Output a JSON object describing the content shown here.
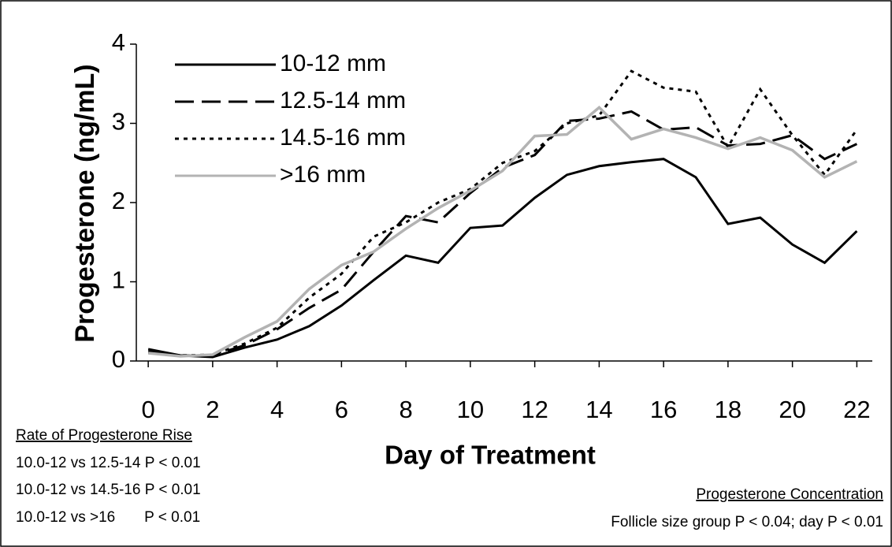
{
  "chart_data": {
    "type": "line",
    "x": [
      0,
      1,
      2,
      3,
      4,
      5,
      6,
      7,
      8,
      9,
      10,
      11,
      12,
      13,
      14,
      15,
      16,
      17,
      18,
      19,
      20,
      21,
      22
    ],
    "xlim": [
      -0.37,
      22.48
    ],
    "xticks": [
      0,
      2,
      4,
      6,
      8,
      10,
      12,
      14,
      16,
      18,
      20,
      22
    ],
    "ylim": [
      0,
      4
    ],
    "yticks": [
      0,
      1,
      2,
      3,
      4
    ],
    "x_label": "Day of Treatment",
    "y_label": "Progesterone (ng/mL)",
    "legend": "upper left",
    "series": [
      {
        "name": "10-12 mm",
        "color": "#000000",
        "dash": "solid",
        "values": [
          0.15,
          0.07,
          0.05,
          0.17,
          0.27,
          0.44,
          0.7,
          1.02,
          1.33,
          1.24,
          1.68,
          1.71,
          2.06,
          2.35,
          2.46,
          2.51,
          2.55,
          2.32,
          1.73,
          1.81,
          1.47,
          1.24,
          1.64
        ]
      },
      {
        "name": "12.5-14 mm",
        "color": "#000000",
        "dash": "dashed",
        "values": [
          0.12,
          0.07,
          0.07,
          0.2,
          0.4,
          0.67,
          0.9,
          1.38,
          1.83,
          1.75,
          2.12,
          2.44,
          2.6,
          3.03,
          3.06,
          3.15,
          2.92,
          2.95,
          2.72,
          2.74,
          2.85,
          2.55,
          2.74
        ]
      },
      {
        "name": "14.5-16 mm",
        "color": "#000000",
        "dash": "dotted",
        "values": [
          0.1,
          0.07,
          0.08,
          0.22,
          0.42,
          0.8,
          1.1,
          1.57,
          1.75,
          2.0,
          2.17,
          2.5,
          2.65,
          3.0,
          3.1,
          3.66,
          3.45,
          3.4,
          2.7,
          3.43,
          2.85,
          2.35,
          2.92
        ]
      },
      {
        "name": ">16 mm",
        "color": "#b3b3b3",
        "dash": "solid",
        "values": [
          0.1,
          0.06,
          0.08,
          0.3,
          0.5,
          0.91,
          1.21,
          1.38,
          1.67,
          1.93,
          2.15,
          2.4,
          2.84,
          2.86,
          3.2,
          2.8,
          2.93,
          2.82,
          2.68,
          2.82,
          2.66,
          2.32,
          2.52
        ]
      }
    ],
    "annotations": {
      "rate_title": "Rate of Progesterone Rise",
      "rate_lines": [
        "10.0-12 vs 12.5-14 P < 0.01",
        "10.0-12 vs 14.5-16 P < 0.01",
        "10.0-12 vs >16       P < 0.01"
      ],
      "conc_title": "Progesterone Concentration",
      "conc_line": "Follicle size group P < 0.04; day P < 0.01"
    }
  }
}
